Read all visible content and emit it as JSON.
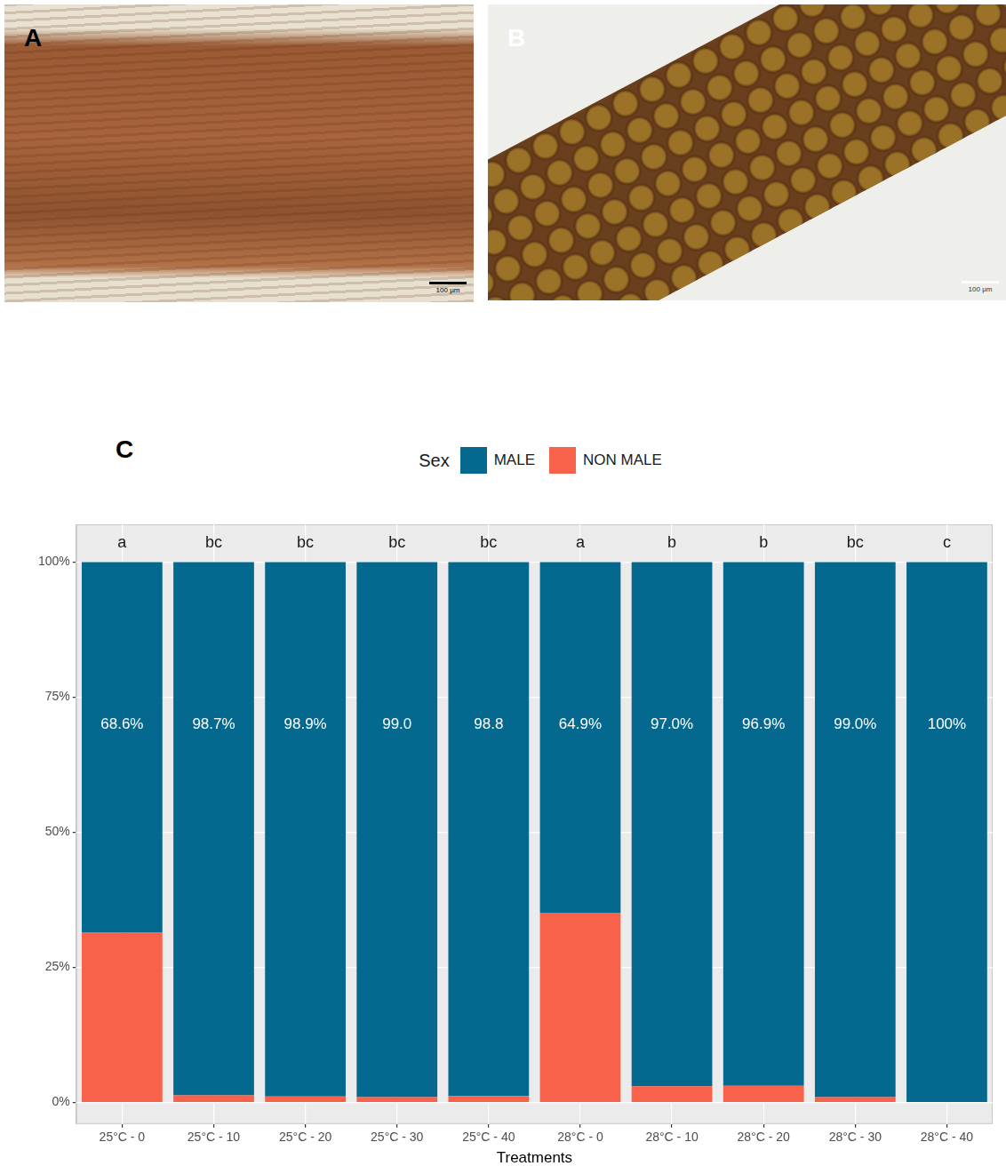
{
  "figure": {
    "panels": [
      {
        "label": "A",
        "scale_bar": "100 µm"
      },
      {
        "label": "B",
        "scale_bar": "100 µm"
      }
    ],
    "chart_label": "C"
  },
  "chart_data": {
    "type": "bar",
    "stacked": true,
    "categories": [
      "25°C - 0",
      "25°C - 10",
      "25°C - 20",
      "25°C - 30",
      "25°C - 40",
      "28°C - 0",
      "28°C - 10",
      "28°C - 20",
      "28°C - 30",
      "28°C - 40"
    ],
    "series": [
      {
        "name": "MALE",
        "color": "#05698f",
        "values": [
          68.6,
          98.7,
          98.9,
          99.0,
          98.8,
          64.9,
          97.0,
          96.9,
          99.0,
          100
        ],
        "value_labels": [
          "68.6%",
          "98.7%",
          "98.9%",
          "99.0",
          "98.8",
          "64.9%",
          "97.0%",
          "96.9%",
          "99.0%",
          "100%"
        ]
      },
      {
        "name": "NON MALE",
        "color": "#f8614a",
        "values": [
          31.4,
          1.3,
          1.1,
          1.0,
          1.2,
          35.1,
          3.0,
          3.1,
          1.0,
          0
        ]
      }
    ],
    "annotations": [
      "a",
      "bc",
      "bc",
      "bc",
      "bc",
      "a",
      "b",
      "b",
      "bc",
      "c"
    ],
    "x_label": "Treatments",
    "legend_title": "Sex",
    "legend": "top",
    "data_labels": true,
    "grid": true,
    "ylim": [
      -4,
      107
    ],
    "yticks": [
      {
        "value": 0,
        "label": "0%"
      },
      {
        "value": 25,
        "label": "25%"
      },
      {
        "value": 50,
        "label": "50%"
      },
      {
        "value": 75,
        "label": "75%"
      },
      {
        "value": 100,
        "label": "100%"
      }
    ]
  }
}
